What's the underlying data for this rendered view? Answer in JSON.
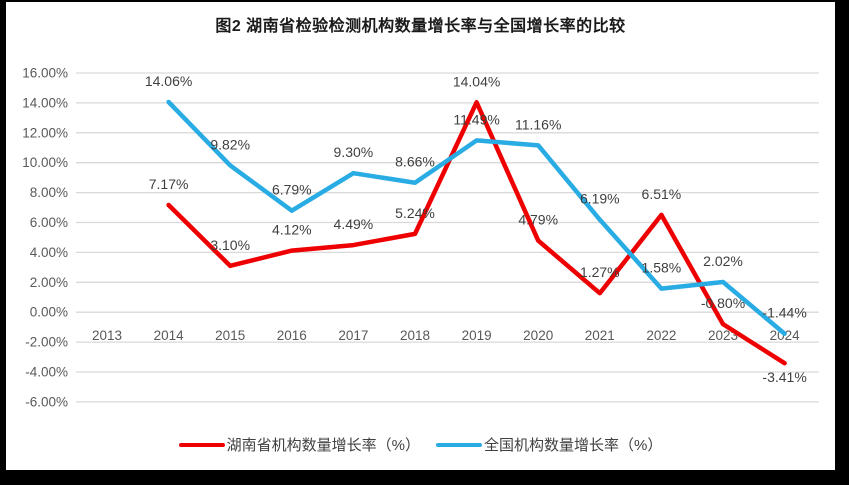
{
  "title": "图2 湖南省检验检测机构数量增长率与全国增长率的比较",
  "colors": {
    "hunan_line": "#ee0000",
    "national_line": "#29ace4",
    "gridline": "#d9d9d9",
    "axis_text": "#595959",
    "data_label_text": "#3f3f3f",
    "frame": "#000000",
    "chart_background": "#ffffff"
  },
  "chart_data": {
    "type": "line",
    "title": "图2 湖南省检验检测机构数量增长率与全国增长率的比较",
    "xlabel": "",
    "ylabel": "",
    "ylim": [
      -6,
      16
    ],
    "grid": true,
    "legend_position": "bottom",
    "categories": [
      "2013",
      "2014",
      "2015",
      "2016",
      "2017",
      "2018",
      "2019",
      "2020",
      "2021",
      "2022",
      "2023",
      "2024"
    ],
    "y_ticks": {
      "values": [
        16,
        14,
        12,
        10,
        8,
        6,
        4,
        2,
        0,
        -2,
        -4,
        -6
      ],
      "labels": [
        "16.00%",
        "14.00%",
        "12.00%",
        "10.00%",
        "8.00%",
        "6.00%",
        "4.00%",
        "2.00%",
        "0.00%",
        "-2.00%",
        "-4.00%",
        "-6.00%"
      ]
    },
    "series": [
      {
        "name": "湖南省机构数量增长率（%）",
        "color": "#ee0000",
        "values": [
          null,
          7.17,
          3.1,
          4.12,
          4.49,
          5.24,
          14.04,
          4.79,
          1.27,
          6.51,
          -0.8,
          -3.41
        ],
        "labels": [
          null,
          "7.17%",
          "3.10%",
          "4.12%",
          "4.49%",
          "5.24%",
          "14.04%",
          "4.79%",
          "1.27%",
          "6.51%",
          "-0.80%",
          "-3.41%"
        ],
        "label_positions": [
          null,
          "above",
          "above",
          "above",
          "above",
          "above",
          "above",
          "above",
          "above",
          "above",
          "above",
          "below"
        ]
      },
      {
        "name": "全国机构数量增长率（%）",
        "color": "#29ace4",
        "values": [
          null,
          14.06,
          9.82,
          6.79,
          9.3,
          8.66,
          11.49,
          11.16,
          6.19,
          1.58,
          2.02,
          -1.44
        ],
        "labels": [
          null,
          "14.06%",
          "9.82%",
          "6.79%",
          "9.30%",
          "8.66%",
          "11.49%",
          "11.16%",
          "6.19%",
          "1.58%",
          "2.02%",
          "-1.44%"
        ],
        "label_positions": [
          null,
          "above",
          "above",
          "above",
          "above",
          "above",
          "above",
          "above",
          "above",
          "above",
          "above",
          "above"
        ]
      }
    ]
  },
  "legend": {
    "items": [
      {
        "label": "湖南省机构数量增长率（%）",
        "color": "#ee0000"
      },
      {
        "label": "全国机构数量增长率（%）",
        "color": "#29ace4"
      }
    ]
  }
}
